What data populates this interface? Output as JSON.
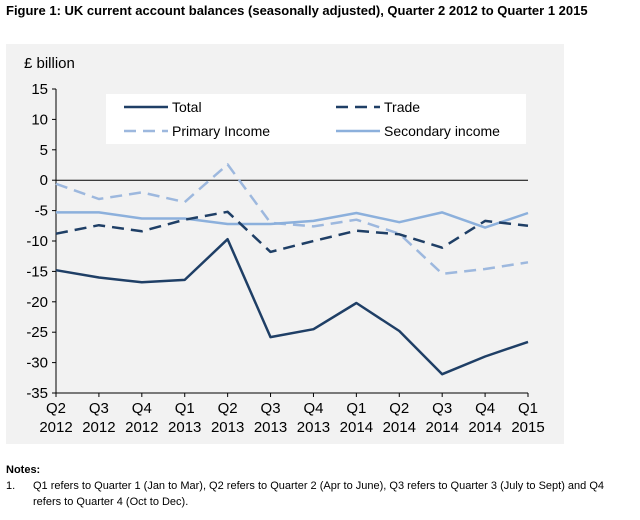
{
  "title": "Figure 1: UK current account balances (seasonally adjusted), Quarter 2 2012 to Quarter 1 2015",
  "chart_data": {
    "type": "line",
    "title": "Figure 1: UK current account balances (seasonally adjusted), Quarter 2 2012 to Quarter 1 2015",
    "ylabel": "£ billion",
    "xlabel": "",
    "ylim": [
      -35,
      15
    ],
    "yticks": [
      "15",
      "10",
      "5",
      "0",
      "-5",
      "-10",
      "-15",
      "-20",
      "-25",
      "-30",
      "-35"
    ],
    "ytick_values": [
      15,
      10,
      5,
      0,
      -5,
      -10,
      -15,
      -20,
      -25,
      -30,
      -35
    ],
    "categories": [
      {
        "q": "Q2",
        "y": "2012"
      },
      {
        "q": "Q3",
        "y": "2012"
      },
      {
        "q": "Q4",
        "y": "2012"
      },
      {
        "q": "Q1",
        "y": "2013"
      },
      {
        "q": "Q2",
        "y": "2013"
      },
      {
        "q": "Q3",
        "y": "2013"
      },
      {
        "q": "Q4",
        "y": "2013"
      },
      {
        "q": "Q1",
        "y": "2014"
      },
      {
        "q": "Q2",
        "y": "2014"
      },
      {
        "q": "Q3",
        "y": "2014"
      },
      {
        "q": "Q4",
        "y": "2014"
      },
      {
        "q": "Q1",
        "y": "2015"
      }
    ],
    "grid": false,
    "legend_position": "top",
    "series": [
      {
        "name": "Total",
        "color": "#1f3f66",
        "dash": "solid",
        "values": [
          -14.8,
          -16.0,
          -16.8,
          -16.4,
          -9.7,
          -25.8,
          -24.5,
          -20.2,
          -24.8,
          -31.9,
          -29.0,
          -26.6
        ]
      },
      {
        "name": "Trade",
        "color": "#1f3f66",
        "dash": "dashed",
        "values": [
          -8.8,
          -7.4,
          -8.4,
          -6.5,
          -5.2,
          -11.8,
          -10.0,
          -8.3,
          -8.9,
          -11.1,
          -6.7,
          -7.5
        ]
      },
      {
        "name": "Primary Income",
        "color": "#9db8de",
        "dash": "dashed",
        "values": [
          -0.6,
          -3.1,
          -2.0,
          -3.6,
          2.6,
          -7.0,
          -7.6,
          -6.5,
          -8.8,
          -15.4,
          -14.6,
          -13.5
        ]
      },
      {
        "name": "Secondary income",
        "color": "#8cb0dc",
        "dash": "solid",
        "values": [
          -5.3,
          -5.3,
          -6.3,
          -6.3,
          -7.2,
          -7.2,
          -6.7,
          -5.4,
          -6.9,
          -5.3,
          -7.8,
          -5.4
        ]
      }
    ]
  },
  "notes": {
    "heading": "Notes:",
    "items": [
      {
        "num": "1.",
        "text": "Q1 refers to Quarter 1 (Jan to Mar), Q2 refers to Quarter 2 (Apr to June), Q3 refers to Quarter 3 (July to Sept) and Q4 refers to Quarter 4 (Oct to Dec)."
      }
    ]
  }
}
